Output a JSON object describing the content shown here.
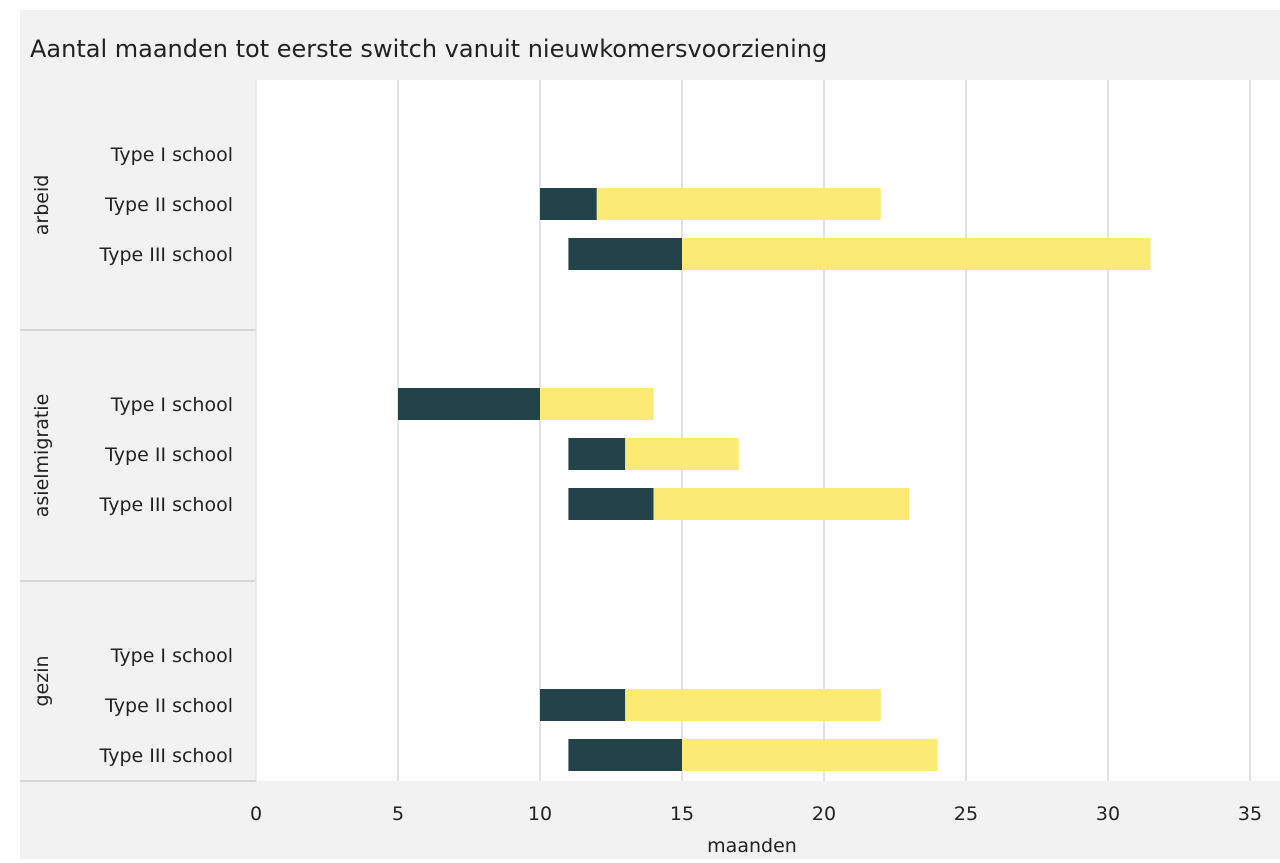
{
  "chart_data": {
    "type": "bar",
    "stacked": true,
    "orientation": "horizontal",
    "title": "Aantal maanden tot eerste switch vanuit nieuwkomersvoorziening",
    "xlabel": "maanden",
    "xlim": [
      0,
      35
    ],
    "xticks": [
      0,
      5,
      10,
      15,
      20,
      25,
      30,
      35
    ],
    "grid": true,
    "legend": "none",
    "colors": {
      "dark": "#23434a",
      "light": "#fbea74",
      "panel": "#f2f2f2",
      "grid": "#d9d9d9"
    },
    "groups": [
      {
        "label": "arbeid",
        "rows": [
          {
            "label": "Type I school"
          },
          {
            "label": "Type II school",
            "start": 10,
            "mid": 12,
            "end": 22
          },
          {
            "label": "Type III school",
            "start": 11,
            "mid": 15,
            "end": 31.5
          }
        ]
      },
      {
        "label": "asielmigratie",
        "rows": [
          {
            "label": "Type I school",
            "start": 5,
            "mid": 10,
            "end": 14
          },
          {
            "label": "Type II school",
            "start": 11,
            "mid": 13,
            "end": 17
          },
          {
            "label": "Type III school",
            "start": 11,
            "mid": 14,
            "end": 23
          }
        ]
      },
      {
        "label": "gezin",
        "rows": [
          {
            "label": "Type I school"
          },
          {
            "label": "Type II school",
            "start": 10,
            "mid": 13,
            "end": 22
          },
          {
            "label": "Type III school",
            "start": 11,
            "mid": 15,
            "end": 24
          }
        ]
      }
    ]
  }
}
